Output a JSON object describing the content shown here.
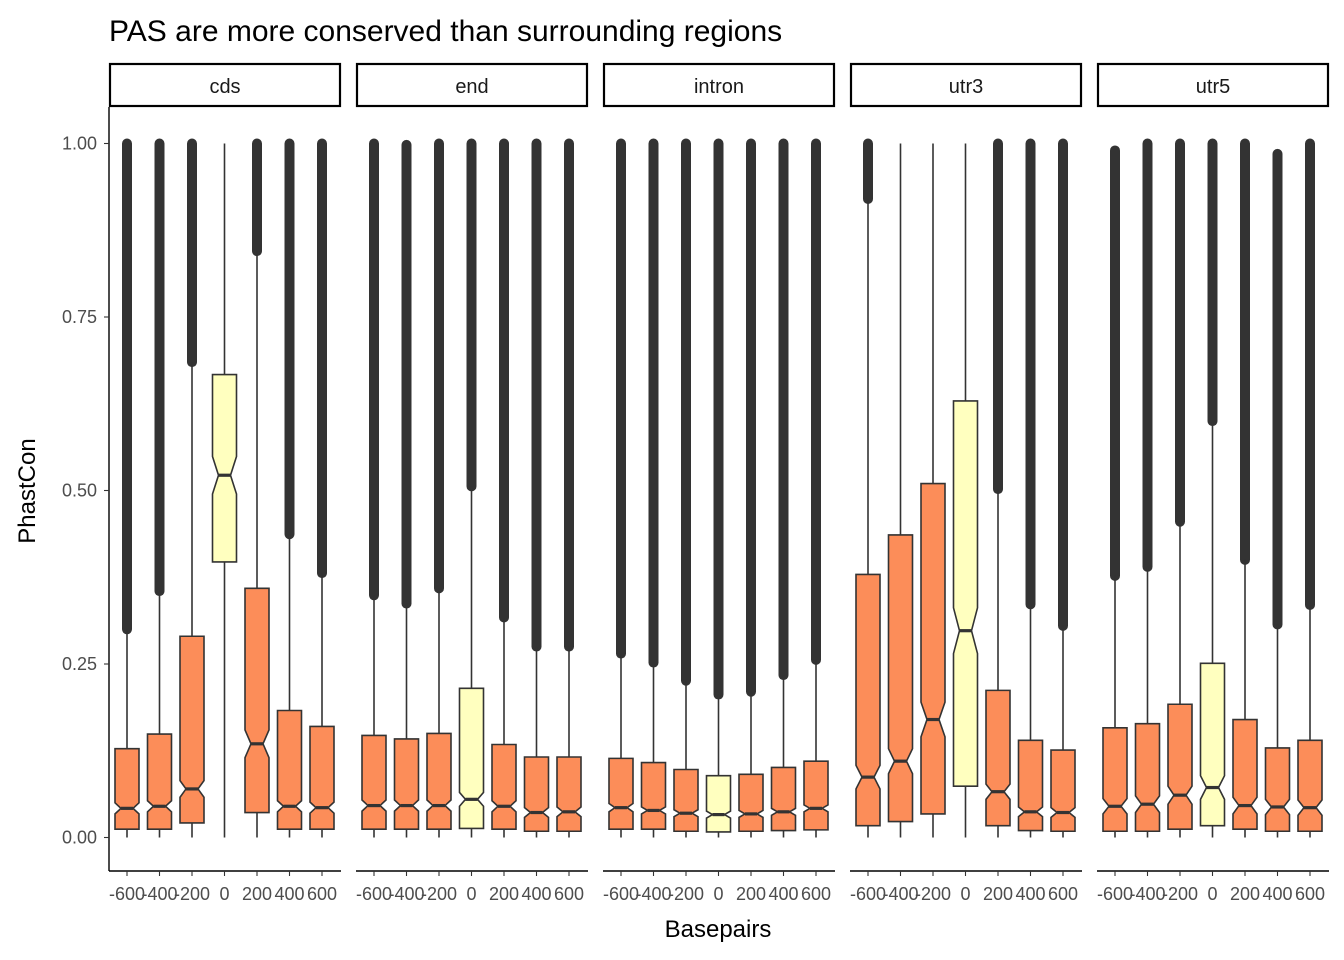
{
  "chart_data": {
    "type": "boxplot",
    "title": "PAS are more conserved than surrounding regions",
    "xlabel": "Basepairs",
    "ylabel": "PhastCon",
    "ylim": [
      -0.05,
      1.05
    ],
    "yticks": [
      0,
      0.25,
      0.5,
      0.75,
      1
    ],
    "ytick_labels": [
      "0.00",
      "0.25",
      "0.50",
      "0.75",
      "1.00"
    ],
    "categories": [
      "-600",
      "-400",
      "-200",
      "0",
      "200",
      "400",
      "600"
    ],
    "grid": false,
    "legend": "none",
    "colors": {
      "flank_fill": "#fc8d59",
      "pas_fill": "#ffffbf",
      "outline": "#333333",
      "outlier": "#333333",
      "strip_border": "#000000"
    },
    "panels": [
      {
        "name": "cds",
        "boxes": [
          {
            "x": "-600",
            "q1": 0.012,
            "median": 0.042,
            "q3": 0.128,
            "whisker_low": 0.0,
            "whisker_high": 0.3,
            "notch_low": 0.034,
            "notch_high": 0.05,
            "outlier_low": 0.3,
            "outlier_high": 1.0
          },
          {
            "x": "-400",
            "q1": 0.012,
            "median": 0.045,
            "q3": 0.149,
            "whisker_low": 0.0,
            "whisker_high": 0.355,
            "notch_low": 0.037,
            "notch_high": 0.053,
            "outlier_low": 0.355,
            "outlier_high": 1.0
          },
          {
            "x": "-200",
            "q1": 0.021,
            "median": 0.07,
            "q3": 0.29,
            "whisker_low": 0.0,
            "whisker_high": 0.685,
            "notch_low": 0.058,
            "notch_high": 0.082,
            "outlier_low": 0.685,
            "outlier_high": 1.0
          },
          {
            "x": "0",
            "q1": 0.397,
            "median": 0.522,
            "q3": 0.667,
            "whisker_low": 0.0,
            "whisker_high": 1.0,
            "notch_low": 0.495,
            "notch_high": 0.549,
            "outlier_low": null,
            "outlier_high": null
          },
          {
            "x": "200",
            "q1": 0.036,
            "median": 0.135,
            "q3": 0.359,
            "whisker_low": 0.0,
            "whisker_high": 0.845,
            "notch_low": 0.115,
            "notch_high": 0.155,
            "outlier_low": 0.845,
            "outlier_high": 1.0
          },
          {
            "x": "400",
            "q1": 0.012,
            "median": 0.045,
            "q3": 0.183,
            "whisker_low": 0.0,
            "whisker_high": 0.437,
            "notch_low": 0.037,
            "notch_high": 0.053,
            "outlier_low": 0.437,
            "outlier_high": 1.0
          },
          {
            "x": "600",
            "q1": 0.012,
            "median": 0.043,
            "q3": 0.16,
            "whisker_low": 0.0,
            "whisker_high": 0.381,
            "notch_low": 0.035,
            "notch_high": 0.051,
            "outlier_low": 0.381,
            "outlier_high": 1.0
          }
        ]
      },
      {
        "name": "end",
        "boxes": [
          {
            "x": "-600",
            "q1": 0.012,
            "median": 0.046,
            "q3": 0.147,
            "whisker_low": 0.0,
            "whisker_high": 0.349,
            "notch_low": 0.038,
            "notch_high": 0.054,
            "outlier_low": 0.349,
            "outlier_high": 1.0
          },
          {
            "x": "-400",
            "q1": 0.012,
            "median": 0.046,
            "q3": 0.142,
            "whisker_low": 0.0,
            "whisker_high": 0.337,
            "notch_low": 0.038,
            "notch_high": 0.054,
            "outlier_low": 0.337,
            "outlier_high": 0.998
          },
          {
            "x": "-200",
            "q1": 0.012,
            "median": 0.046,
            "q3": 0.15,
            "whisker_low": 0.0,
            "whisker_high": 0.359,
            "notch_low": 0.038,
            "notch_high": 0.054,
            "outlier_low": 0.359,
            "outlier_high": 1.0
          },
          {
            "x": "0",
            "q1": 0.013,
            "median": 0.055,
            "q3": 0.215,
            "whisker_low": 0.0,
            "whisker_high": 0.506,
            "notch_low": 0.045,
            "notch_high": 0.065,
            "outlier_low": 0.506,
            "outlier_high": 1.0
          },
          {
            "x": "200",
            "q1": 0.012,
            "median": 0.045,
            "q3": 0.134,
            "whisker_low": 0.0,
            "whisker_high": 0.317,
            "notch_low": 0.037,
            "notch_high": 0.053,
            "outlier_low": 0.317,
            "outlier_high": 1.0
          },
          {
            "x": "400",
            "q1": 0.009,
            "median": 0.036,
            "q3": 0.116,
            "whisker_low": 0.0,
            "whisker_high": 0.275,
            "notch_low": 0.029,
            "notch_high": 0.043,
            "outlier_low": 0.275,
            "outlier_high": 1.0
          },
          {
            "x": "600",
            "q1": 0.009,
            "median": 0.037,
            "q3": 0.116,
            "whisker_low": 0.0,
            "whisker_high": 0.275,
            "notch_low": 0.03,
            "notch_high": 0.044,
            "outlier_low": 0.275,
            "outlier_high": 1.0
          }
        ]
      },
      {
        "name": "intron",
        "boxes": [
          {
            "x": "-600",
            "q1": 0.012,
            "median": 0.043,
            "q3": 0.114,
            "whisker_low": 0.0,
            "whisker_high": 0.265,
            "notch_low": 0.037,
            "notch_high": 0.049,
            "outlier_low": 0.265,
            "outlier_high": 1.0
          },
          {
            "x": "-400",
            "q1": 0.012,
            "median": 0.039,
            "q3": 0.108,
            "whisker_low": 0.0,
            "whisker_high": 0.252,
            "notch_low": 0.034,
            "notch_high": 0.044,
            "outlier_low": 0.252,
            "outlier_high": 1.0
          },
          {
            "x": "-200",
            "q1": 0.009,
            "median": 0.035,
            "q3": 0.098,
            "whisker_low": 0.0,
            "whisker_high": 0.226,
            "notch_low": 0.03,
            "notch_high": 0.04,
            "outlier_low": 0.226,
            "outlier_high": 1.0
          },
          {
            "x": "0",
            "q1": 0.008,
            "median": 0.033,
            "q3": 0.089,
            "whisker_low": 0.0,
            "whisker_high": 0.206,
            "notch_low": 0.028,
            "notch_high": 0.038,
            "outlier_low": 0.206,
            "outlier_high": 1.0
          },
          {
            "x": "200",
            "q1": 0.009,
            "median": 0.034,
            "q3": 0.091,
            "whisker_low": 0.0,
            "whisker_high": 0.21,
            "notch_low": 0.029,
            "notch_high": 0.039,
            "outlier_low": 0.21,
            "outlier_high": 1.0
          },
          {
            "x": "400",
            "q1": 0.01,
            "median": 0.037,
            "q3": 0.101,
            "whisker_low": 0.0,
            "whisker_high": 0.234,
            "notch_low": 0.032,
            "notch_high": 0.042,
            "outlier_low": 0.234,
            "outlier_high": 1.0
          },
          {
            "x": "600",
            "q1": 0.011,
            "median": 0.042,
            "q3": 0.11,
            "whisker_low": 0.0,
            "whisker_high": 0.256,
            "notch_low": 0.037,
            "notch_high": 0.047,
            "outlier_low": 0.256,
            "outlier_high": 1.0
          }
        ]
      },
      {
        "name": "utr3",
        "boxes": [
          {
            "x": "-600",
            "q1": 0.017,
            "median": 0.087,
            "q3": 0.379,
            "whisker_low": 0.0,
            "whisker_high": 0.92,
            "notch_low": 0.07,
            "notch_high": 0.104,
            "outlier_low": 0.92,
            "outlier_high": 1.0
          },
          {
            "x": "-400",
            "q1": 0.023,
            "median": 0.11,
            "q3": 0.436,
            "whisker_low": 0.0,
            "whisker_high": 1.0,
            "notch_low": 0.092,
            "notch_high": 0.128,
            "outlier_low": null,
            "outlier_high": null
          },
          {
            "x": "-200",
            "q1": 0.034,
            "median": 0.17,
            "q3": 0.51,
            "whisker_low": 0.0,
            "whisker_high": 1.0,
            "notch_low": 0.145,
            "notch_high": 0.195,
            "outlier_low": null,
            "outlier_high": null
          },
          {
            "x": "0",
            "q1": 0.074,
            "median": 0.298,
            "q3": 0.629,
            "whisker_low": 0.0,
            "whisker_high": 1.0,
            "notch_low": 0.265,
            "notch_high": 0.331,
            "outlier_low": null,
            "outlier_high": null
          },
          {
            "x": "200",
            "q1": 0.017,
            "median": 0.066,
            "q3": 0.212,
            "whisker_low": 0.0,
            "whisker_high": 0.502,
            "notch_low": 0.055,
            "notch_high": 0.077,
            "outlier_low": 0.502,
            "outlier_high": 1.0
          },
          {
            "x": "400",
            "q1": 0.01,
            "median": 0.037,
            "q3": 0.14,
            "whisker_low": 0.0,
            "whisker_high": 0.336,
            "notch_low": 0.03,
            "notch_high": 0.044,
            "outlier_low": 0.336,
            "outlier_high": 1.0
          },
          {
            "x": "600",
            "q1": 0.009,
            "median": 0.036,
            "q3": 0.126,
            "whisker_low": 0.0,
            "whisker_high": 0.305,
            "notch_low": 0.029,
            "notch_high": 0.043,
            "outlier_low": 0.305,
            "outlier_high": 1.0
          }
        ]
      },
      {
        "name": "utr5",
        "boxes": [
          {
            "x": "-600",
            "q1": 0.009,
            "median": 0.045,
            "q3": 0.158,
            "whisker_low": 0.0,
            "whisker_high": 0.377,
            "notch_low": 0.034,
            "notch_high": 0.056,
            "outlier_low": 0.377,
            "outlier_high": 0.99
          },
          {
            "x": "-400",
            "q1": 0.009,
            "median": 0.048,
            "q3": 0.164,
            "whisker_low": 0.0,
            "whisker_high": 0.39,
            "notch_low": 0.036,
            "notch_high": 0.06,
            "outlier_low": 0.39,
            "outlier_high": 1.0
          },
          {
            "x": "-200",
            "q1": 0.012,
            "median": 0.061,
            "q3": 0.192,
            "whisker_low": 0.0,
            "whisker_high": 0.455,
            "notch_low": 0.048,
            "notch_high": 0.074,
            "outlier_low": 0.455,
            "outlier_high": 1.0
          },
          {
            "x": "0",
            "q1": 0.017,
            "median": 0.072,
            "q3": 0.251,
            "whisker_low": 0.0,
            "whisker_high": 0.6,
            "notch_low": 0.055,
            "notch_high": 0.089,
            "outlier_low": 0.6,
            "outlier_high": 1.0
          },
          {
            "x": "200",
            "q1": 0.012,
            "median": 0.046,
            "q3": 0.17,
            "whisker_low": 0.0,
            "whisker_high": 0.4,
            "notch_low": 0.034,
            "notch_high": 0.058,
            "outlier_low": 0.4,
            "outlier_high": 1.0
          },
          {
            "x": "400",
            "q1": 0.009,
            "median": 0.044,
            "q3": 0.129,
            "whisker_low": 0.0,
            "whisker_high": 0.307,
            "notch_low": 0.033,
            "notch_high": 0.055,
            "outlier_low": 0.307,
            "outlier_high": 0.985
          },
          {
            "x": "600",
            "q1": 0.009,
            "median": 0.043,
            "q3": 0.14,
            "whisker_low": 0.0,
            "whisker_high": 0.335,
            "notch_low": 0.032,
            "notch_high": 0.054,
            "outlier_low": 0.335,
            "outlier_high": 1.0
          }
        ]
      }
    ]
  }
}
